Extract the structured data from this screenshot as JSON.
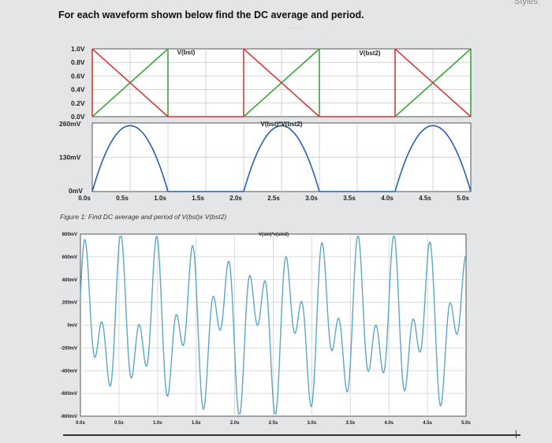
{
  "header": {
    "title": "For each waveform shown below find the DC average and period.",
    "corner": "Styles"
  },
  "caption": "Figure 1: Find DC average and period of V(bst)x V(bst2)",
  "chart_data": [
    {
      "type": "line",
      "title": "",
      "xlabel": "",
      "ylabel": "",
      "xlim": [
        0,
        5.0
      ],
      "ylim": [
        0,
        1.0
      ],
      "yticks": [
        "1.0V",
        "0.8V",
        "0.6V",
        "0.4V",
        "0.2V",
        "0.0V"
      ],
      "series": [
        {
          "name": "V(bst)",
          "color": "#3aa63a",
          "x": [
            0,
            0.5,
            0.5,
            0.5,
            1.0
          ],
          "y": [
            0.0,
            1.0,
            0.0,
            1.0,
            1.0
          ],
          "note_segments": "ramp 0-1V over 0.0-0.5s then hold"
        },
        {
          "name": "V(bst2)",
          "color": "#d23a3a",
          "x": [
            0.0,
            0.5,
            0.5,
            1.0,
            2.0
          ],
          "y": [
            1.0,
            0.0,
            1.0,
            1.0,
            0.0
          ]
        }
      ]
    },
    {
      "type": "line",
      "title": "",
      "xlabel": "",
      "ylabel": "",
      "xlim": [
        0,
        5.0
      ],
      "ylim": [
        0,
        0.26
      ],
      "yticks": [
        "260mV",
        "130mV",
        "0mV"
      ],
      "xticks": [
        "0.0s",
        "0.5s",
        "1.0s",
        "1.5s",
        "2.0s",
        "2.5s",
        "3.0s",
        "3.5s",
        "4.0s",
        "4.5s",
        "5.0s"
      ],
      "series": [
        {
          "name": "V(bst)*V(bst2)",
          "color": "#2563b0",
          "x": [
            0.0,
            0.25,
            0.5,
            0.75,
            1.0,
            2.0,
            2.25,
            2.5,
            2.75,
            3.0,
            4.0,
            4.25,
            4.5,
            4.75,
            5.0
          ],
          "y": [
            0.0,
            0.19,
            0.25,
            0.19,
            0.0,
            0.0,
            0.19,
            0.25,
            0.19,
            0.0,
            0.0,
            0.19,
            0.25,
            0.19,
            0.0
          ]
        }
      ]
    },
    {
      "type": "line",
      "title": "",
      "xlabel": "",
      "ylabel": "",
      "xlim": [
        0,
        5.0
      ],
      "ylim": [
        -0.8,
        0.8
      ],
      "yticks": [
        "800mV",
        "600mV",
        "400mV",
        "200mV",
        "0mV",
        "-200mV",
        "-400mV",
        "-600mV",
        "-800mV"
      ],
      "xticks": [
        "0.0s",
        "0.5s",
        "1.0s",
        "1.5s",
        "2.0s",
        "2.5s",
        "3.0s",
        "3.5s",
        "4.0s",
        "4.5s",
        "5.0s"
      ],
      "series": [
        {
          "name": "V(sin)*v(sin2)",
          "color": "#5aa7c8",
          "x": [
            0.0,
            0.15,
            0.35,
            0.6,
            0.8,
            1.0
          ],
          "y": [
            0.2,
            0.75,
            -0.75,
            0.75,
            0.0,
            0.2
          ]
        }
      ]
    }
  ]
}
